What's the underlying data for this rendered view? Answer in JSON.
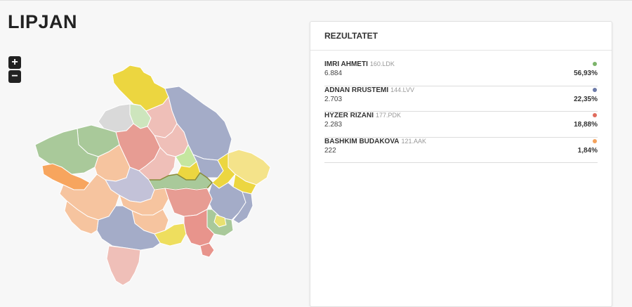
{
  "page": {
    "title": "LIPJAN"
  },
  "map": {
    "zoom_in_label": "+",
    "zoom_out_label": "−",
    "colors": {
      "green": "#a9c99a",
      "blue": "#a4acc8",
      "red": "#e79c93",
      "orange": "#f6c49f",
      "yellow": "#ecd640",
      "dark_orange": "#f7a55e",
      "light_red": "#efbfb8",
      "light_green": "#cde5bd",
      "gray": "#d9d9d9",
      "lime": "#c5e6a0"
    }
  },
  "results": {
    "title": "REZULTATET",
    "candidates": [
      {
        "name": "IMRI AHMETI",
        "list": "160.LDK",
        "votes": "6.884",
        "percent": "56,93%",
        "color": "#7cb46a"
      },
      {
        "name": "ADNAN RRUSTEMI",
        "list": "144.LVV",
        "votes": "2.703",
        "percent": "22,35%",
        "color": "#6c7aa8"
      },
      {
        "name": "HYZER RIZANI",
        "list": "177.PDK",
        "votes": "2.283",
        "percent": "18,88%",
        "color": "#e06c5e"
      },
      {
        "name": "BASHKIM BUDAKOVA",
        "list": "121.AAK",
        "votes": "222",
        "percent": "1,84%",
        "color": "#f4a25c"
      }
    ]
  }
}
